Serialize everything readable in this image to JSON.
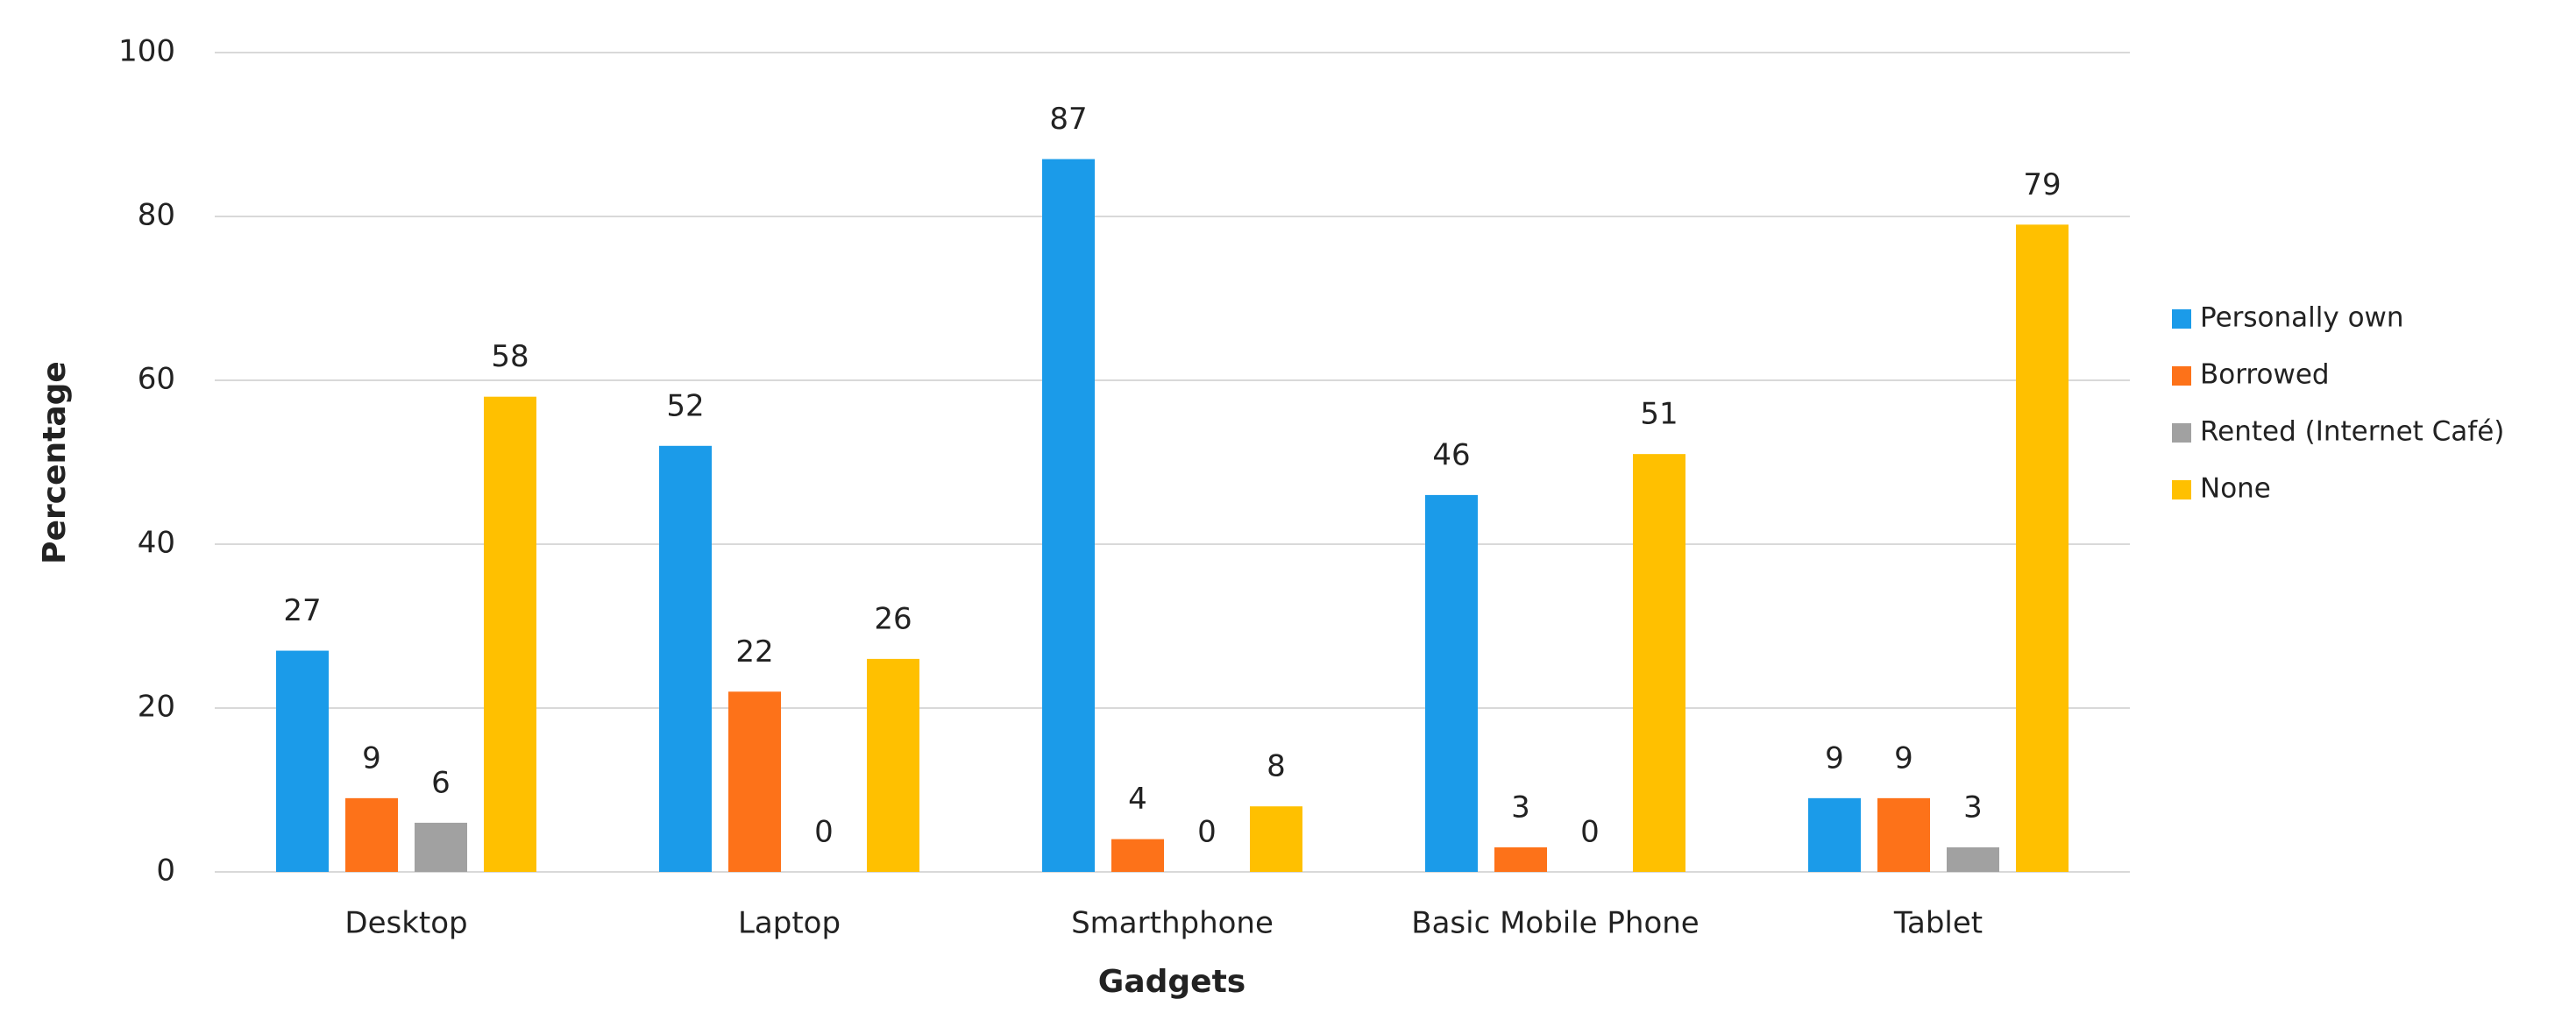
{
  "chart_data": {
    "type": "bar",
    "x_label": "Gadgets",
    "y_label": "Percentage",
    "categories": [
      "Desktop",
      "Laptop",
      "Smarthphone",
      "Basic Mobile Phone",
      "Tablet"
    ],
    "series": [
      {
        "name": "Personally own",
        "color": "#1b9be9",
        "values": [
          27,
          52,
          87,
          46,
          9
        ]
      },
      {
        "name": "Borrowed",
        "color": "#fd7219",
        "values": [
          9,
          22,
          4,
          3,
          9
        ]
      },
      {
        "name": "Rented (Internet Café)",
        "color": "#a1a1a1",
        "values": [
          6,
          0,
          0,
          0,
          3
        ]
      },
      {
        "name": "None",
        "color": "#ffc000",
        "values": [
          58,
          26,
          8,
          51,
          79
        ]
      }
    ],
    "ylim": [
      0,
      100
    ],
    "yticks": [
      0,
      20,
      40,
      60,
      80,
      100
    ],
    "grid": true,
    "legend": "right"
  }
}
